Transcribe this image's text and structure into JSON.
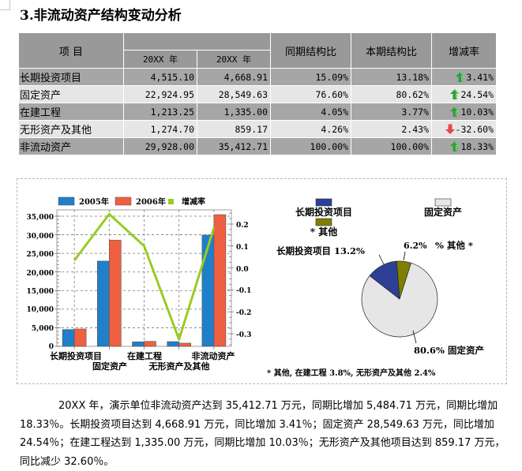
{
  "section_title": "3.非流动资产结构变动分析",
  "table": {
    "header": {
      "item": "项    目",
      "year_group": "",
      "year1": "20XX 年",
      "year2": "20XX 年",
      "prev_ratio": "同期结构比",
      "curr_ratio": "本期结构比",
      "change": "增减率"
    },
    "rows": [
      {
        "name": "长期投资项目",
        "y1": "4,515.10",
        "y2": "4,668.91",
        "prev": "15.09%",
        "curr": "13.18%",
        "change": "3.41%",
        "dir": "up"
      },
      {
        "name": "固定资产",
        "y1": "22,924.95",
        "y2": "28,549.63",
        "prev": "76.60%",
        "curr": "80.62%",
        "change": "24.54%",
        "dir": "up"
      },
      {
        "name": "在建工程",
        "y1": "1,213.25",
        "y2": "1,335.00",
        "prev": "4.05%",
        "curr": "3.77%",
        "change": "10.03%",
        "dir": "up"
      },
      {
        "name": "无形资产及其他",
        "y1": "1,274.70",
        "y2": "859.17",
        "prev": "4.26%",
        "curr": "2.43%",
        "change": "-32.60%",
        "dir": "down"
      },
      {
        "name": "非流动资产",
        "y1": "29,928.00",
        "y2": "35,412.71",
        "prev": "100.00%",
        "curr": "100.00%",
        "change": "18.33%",
        "dir": "up"
      }
    ],
    "colors": {
      "header_bg": "#999999",
      "dark_row": "#a6a6a6",
      "light_row": "#e6e6e6",
      "up_arrow": "#2e9e3a",
      "down_arrow": "#e04848"
    }
  },
  "chart_data": [
    {
      "type": "bar",
      "title": "",
      "categories": [
        "长期投资项目",
        "固定资产",
        "在建工程",
        "无形资产及其他",
        "非流动资产"
      ],
      "series": [
        {
          "name": "2005年",
          "type": "bar",
          "axis": "left",
          "color": "#1f7fc8",
          "values": [
            4515.1,
            22924.95,
            1213.25,
            1274.7,
            29928.0
          ]
        },
        {
          "name": "2006年",
          "type": "bar",
          "axis": "left",
          "color": "#ee6040",
          "values": [
            4668.91,
            28549.63,
            1335.0,
            859.17,
            35412.71
          ]
        },
        {
          "name": "增减率",
          "type": "line",
          "axis": "right",
          "color": "#99cc22",
          "values": [
            0.0341,
            0.2454,
            0.1003,
            -0.326,
            0.1833
          ]
        }
      ],
      "xlabel": "",
      "ylabel": "",
      "ylim": [
        0,
        35000
      ],
      "y_ticks": [
        "0",
        "5,000",
        "10,000",
        "15,000",
        "20,000",
        "25,000",
        "30,000",
        "35,000"
      ],
      "y2lim": [
        -0.35,
        0.25
      ],
      "y2_ticks": [
        "-0.3",
        "-0.2",
        "-0.1",
        "0.0",
        "0.1",
        "0.2"
      ],
      "grid": true,
      "legend_position": "top"
    },
    {
      "type": "pie",
      "title": "",
      "categories": [
        "长期投资项目",
        "固定资产",
        "* 其他"
      ],
      "values": [
        13.2,
        80.6,
        6.2
      ],
      "colors": [
        "#2e3f96",
        "#e6e6e6",
        "#7f7f00"
      ],
      "labels": [
        "长期投资项目 13.2%",
        "80.6% 固定资产",
        "6.2%  % 其他 *"
      ],
      "legend": [
        "长期投资项目",
        "固定资产",
        "* 其他"
      ],
      "legend_position": "top",
      "footnote": "* 其他, 在建工程 3.8%, 无形资产及其他 2.4%"
    }
  ],
  "bar_chart_labels": {
    "legend": [
      "2005年",
      "2006年",
      "增减率"
    ],
    "y_ticks": [
      "0",
      "5,000",
      "10,000",
      "15,000",
      "20,000",
      "25,000",
      "30,000",
      "35,000"
    ],
    "y2_ticks": [
      "-0.3",
      "-0.2",
      "-0.1",
      "0.0",
      "0.1",
      "0.2"
    ],
    "x_labels": [
      "长期投资项目",
      "固定资产",
      "在建工程",
      "无形资产及其他",
      "非流动资产"
    ]
  },
  "pie_chart_labels": {
    "legend_1": "长期投资项目",
    "legend_2": "固定资产",
    "legend_3": "* 其他",
    "label_long": "长期投资项目  13.2%",
    "label_other_pct": "6.2%",
    "label_other_name": "% 其他 *",
    "label_fixed": "80.6% 固定资产",
    "footnote": "* 其他, 在建工程 3.8%, 无形资产及其他 2.4%"
  },
  "paragraph": [
    "20XX 年，演示单位非流动资产达到 35,412.71 万元，同期比增加 5,484.71 万元，同期比增加 18.33％。长期投资项目达到 4,668.91 万元，同比增加 3.41％；固定资产 28,549.63 万元，同比增加 24.54％；在建工程达到 1,335.00 万元，同期比增加 10.03％；无形资产及其他项目达到 859.17 万元，同比减少 32.60％。"
  ]
}
